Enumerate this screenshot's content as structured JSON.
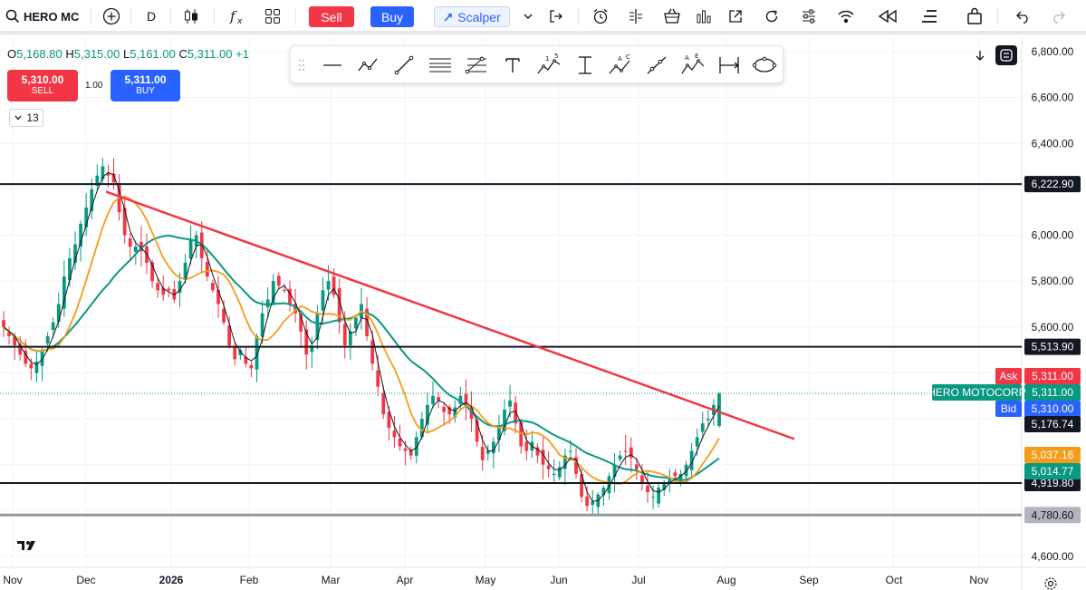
{
  "toolbar": {
    "symbol": "HERO MC",
    "interval": "D",
    "sell_label": "Sell",
    "buy_label": "Buy",
    "scalper_label": "Scalper",
    "icons": [
      "search-icon",
      "add-symbol-icon",
      "candles-icon",
      "indicators-icon",
      "layouts-icon",
      "alert-icon",
      "replay-icon",
      "basket-icon",
      "chart-icon",
      "external-icon",
      "refresh-icon",
      "settings-icon",
      "broadcast-icon",
      "rewind-icon",
      "menu-icon",
      "bag-icon",
      "undo-icon",
      "redo-icon"
    ]
  },
  "legend": {
    "o_label": "O",
    "o_value": "5,168.80",
    "h_label": "H",
    "h_value": "5,315.00",
    "l_label": "L",
    "l_value": "5,161.00",
    "c_label": "C",
    "c_value": "5,311.00",
    "change": "+1",
    "sell_price": "5,310.00",
    "sell_label": "SELL",
    "buy_price": "5,311.00",
    "buy_label": "BUY",
    "spread": "1.00",
    "collapse_count": "13"
  },
  "colors": {
    "up": "#089981",
    "down": "#f23645",
    "trend": "#f23645",
    "ma_fast": "#131722",
    "ma_mid": "#f59c1a",
    "ma_slow": "#089981",
    "level": "#131722",
    "level_grey": "#9598a1",
    "ask": "#f23645",
    "bid": "#2962ff"
  },
  "chart_data": {
    "type": "candlestick",
    "symbol_label": "HERO MOTOCORP",
    "x_ticks": [
      "Nov",
      "Dec",
      "2026",
      "Feb",
      "Mar",
      "Apr",
      "May",
      "Jun",
      "Jul",
      "Aug",
      "Sep",
      "Oct",
      "Nov"
    ],
    "y_ticks": [
      "6,800.00",
      "6,600.00",
      "6,400.00",
      "6,000.00",
      "5,800.00",
      "5,600.00",
      "4,600.00"
    ],
    "ylim": [
      4500,
      6850
    ],
    "horizontal_levels": [
      {
        "value": 6222.9,
        "label": "6,222.90",
        "style": "black"
      },
      {
        "value": 5513.9,
        "label": "5,513.90",
        "style": "black"
      },
      {
        "value": 4919.8,
        "label": "4,919.80",
        "style": "black"
      },
      {
        "value": 4780.6,
        "label": "4,780.60",
        "style": "grey"
      }
    ],
    "price_labels": [
      {
        "text": "5,311.00",
        "tag": "Ask",
        "value": 5311,
        "color": "#f23645"
      },
      {
        "text": "5,311.00",
        "tag": "HERO MOTOCORP",
        "value": 5311,
        "color": "#089981"
      },
      {
        "text": "5,310.00",
        "tag": "Bid",
        "value": 5310,
        "color": "#2962ff"
      },
      {
        "text": "5,176.74",
        "tag": "",
        "value": 5176.74,
        "color": "#131722"
      },
      {
        "text": "5,037.16",
        "tag": "",
        "value": 5037.16,
        "color": "#f59c1a"
      },
      {
        "text": "5,014.77",
        "tag": "",
        "value": 5014.77,
        "color": "#089981"
      }
    ],
    "trendline": {
      "from": {
        "month": "Dec",
        "price": 6190
      },
      "to": {
        "month": "Aug-end",
        "price": 5110
      }
    },
    "closes": [
      5600,
      5560,
      5520,
      5480,
      5440,
      5420,
      5450,
      5500,
      5560,
      5620,
      5700,
      5820,
      5900,
      5960,
      6050,
      6120,
      6200,
      6260,
      6300,
      6260,
      6230,
      6100,
      6000,
      5950,
      5950,
      5930,
      5880,
      5800,
      5760,
      5740,
      5760,
      5720,
      5800,
      5880,
      5980,
      6000,
      5900,
      5820,
      5760,
      5700,
      5620,
      5520,
      5460,
      5500,
      5440,
      5420,
      5560,
      5660,
      5720,
      5800,
      5780,
      5760,
      5700,
      5660,
      5580,
      5480,
      5520,
      5660,
      5760,
      5800,
      5740,
      5620,
      5520,
      5580,
      5640,
      5700,
      5560,
      5440,
      5340,
      5220,
      5160,
      5120,
      5080,
      5060,
      5040,
      5120,
      5200,
      5260,
      5300,
      5280,
      5230,
      5220,
      5250,
      5300,
      5260,
      5200,
      5100,
      5020,
      5060,
      5100,
      5160,
      5240,
      5280,
      5180,
      5080,
      5060,
      5100,
      5040,
      5000,
      4980,
      4960,
      4990,
      5040,
      5060,
      4960,
      4860,
      4820,
      4840,
      4870,
      4900,
      4950,
      5000,
      5040,
      5060,
      5030,
      4980,
      4920,
      4880,
      4860,
      4900,
      4920,
      4940,
      4950,
      4960,
      5000,
      5060,
      5120,
      5180,
      5200,
      5260,
      5310
    ]
  }
}
